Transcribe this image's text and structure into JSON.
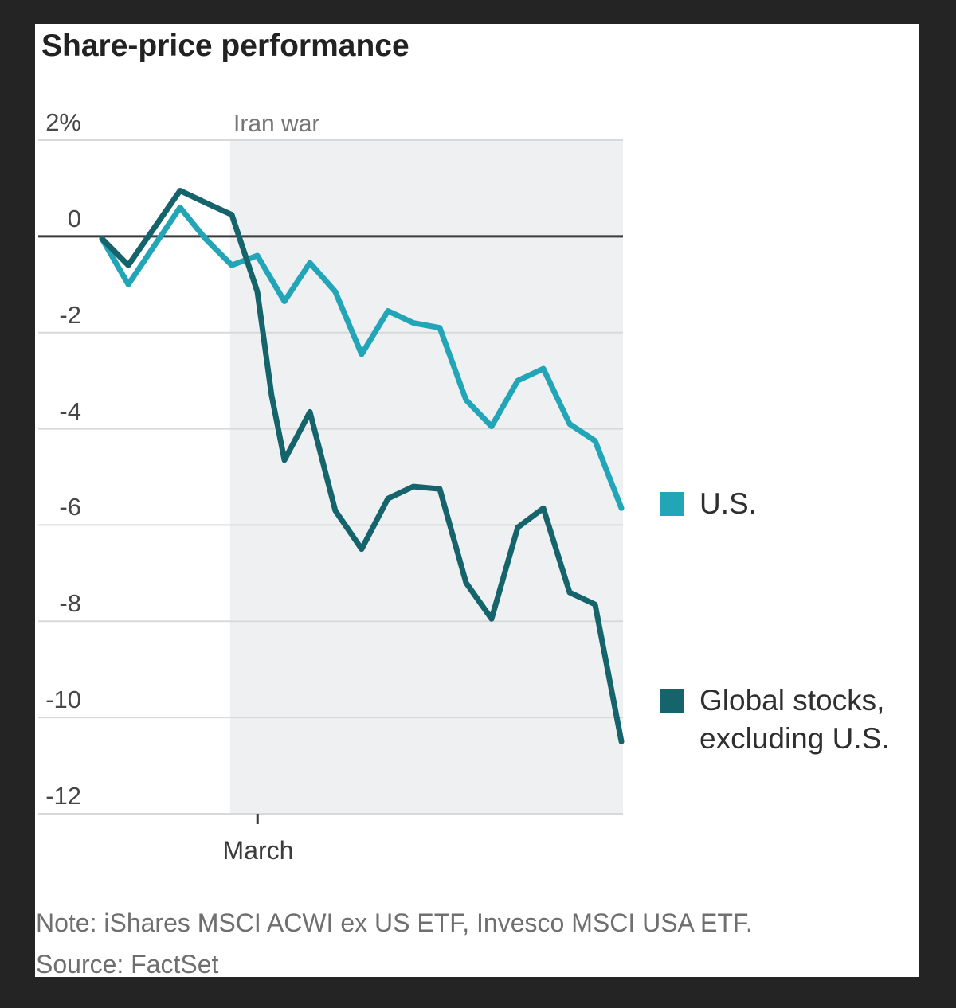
{
  "title": "Share-price performance",
  "legend": {
    "us": {
      "label": "U.S.",
      "color": "#23a5b8"
    },
    "global": {
      "label_line1": "Global stocks,",
      "label_line2": "excluding U.S.",
      "color": "#15646b"
    }
  },
  "notes": {
    "note": "Note: iShares MSCI ACWI ex US ETF, Invesco MSCI USA ETF.",
    "source": "Source: FactSet"
  },
  "chart_data": {
    "type": "line",
    "title": "Share-price performance",
    "unit": "%",
    "ylim": [
      -12,
      2
    ],
    "grid": true,
    "zero_line": true,
    "legend_position": "right",
    "y_ticks": [
      {
        "label": "2%",
        "value": 2
      },
      {
        "label": "0",
        "value": 0
      },
      {
        "label": "-2",
        "value": -2
      },
      {
        "label": "-4",
        "value": -4
      },
      {
        "label": "-6",
        "value": -6
      },
      {
        "label": "-8",
        "value": -8
      },
      {
        "label": "-10",
        "value": -10
      },
      {
        "label": "-12",
        "value": -12
      }
    ],
    "x_tick": {
      "label": "March",
      "frac": 0.375
    },
    "shaded_region": {
      "label": "Iran war",
      "start_frac": 0.328,
      "end_frac": 1.0
    },
    "colors": {
      "grid": "#d9d9d9",
      "zero_line": "#3b3b3b",
      "shading": "#eef0f1",
      "tick": "#3b3b3b"
    },
    "series": [
      {
        "name": "U.S.",
        "color": "#23a5b8",
        "x_frac": [
          0.109,
          0.154,
          0.2425,
          0.286,
          0.331,
          0.3747,
          0.421,
          0.4646,
          0.508,
          0.553,
          0.598,
          0.6417,
          0.6866,
          0.7316,
          0.7752,
          0.82,
          0.8638,
          0.9087,
          0.9523,
          0.9973
        ],
        "values": [
          -0.05,
          -1.0,
          0.6,
          -0.05,
          -0.6,
          -0.4,
          -1.35,
          -0.55,
          -1.15,
          -2.45,
          -1.55,
          -1.8,
          -1.9,
          -3.4,
          -3.95,
          -3.0,
          -2.75,
          -3.9,
          -4.25,
          -5.65
        ]
      },
      {
        "name": "Global stocks, excluding U.S.",
        "color": "#15646b",
        "x_frac": [
          0.109,
          0.154,
          0.2425,
          0.286,
          0.331,
          0.3747,
          0.399,
          0.421,
          0.4646,
          0.508,
          0.553,
          0.598,
          0.6417,
          0.6866,
          0.7316,
          0.7752,
          0.82,
          0.8638,
          0.9087,
          0.9523,
          0.9973
        ],
        "values": [
          -0.05,
          -0.6,
          0.95,
          0.7,
          0.45,
          -1.15,
          -3.3,
          -4.65,
          -3.65,
          -5.7,
          -6.5,
          -5.45,
          -5.2,
          -5.25,
          -7.2,
          -7.95,
          -6.05,
          -5.65,
          -7.4,
          -7.65,
          -10.5
        ]
      }
    ]
  }
}
